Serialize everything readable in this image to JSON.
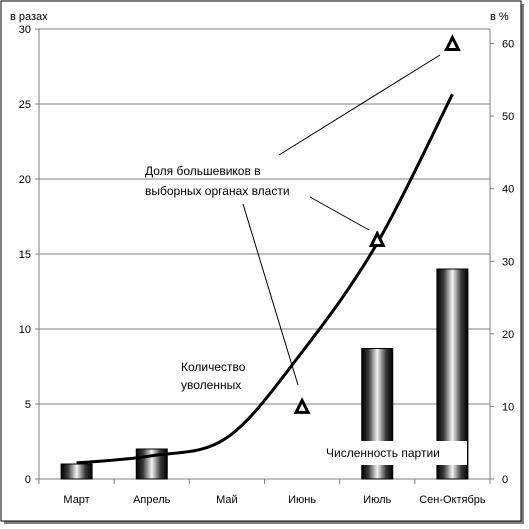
{
  "chart_data": {
    "type": "bar",
    "categories": [
      "Март",
      "Апрель",
      "Май",
      "Июнь",
      "Июль",
      "Сен-Октябрь"
    ],
    "left_axis": {
      "label": "в разах",
      "ylim": [
        0,
        30
      ],
      "ticks": [
        0,
        5,
        10,
        15,
        20,
        25,
        30
      ]
    },
    "right_axis": {
      "label": "в %",
      "ylim": [
        0,
        62
      ],
      "ticks": [
        0,
        10,
        20,
        30,
        40,
        50,
        60
      ]
    },
    "grid": true,
    "series": [
      {
        "name": "Численность партии",
        "type": "bar",
        "axis": "left",
        "values": [
          1,
          2,
          null,
          null,
          8.7,
          14
        ]
      },
      {
        "name": "Количество уволенных",
        "type": "line",
        "axis": "right",
        "values": [
          2.2,
          3.2,
          5.7,
          17.5,
          32.5,
          53
        ]
      },
      {
        "name": "Доля большевиков в выборных органах власти",
        "type": "scatter",
        "marker": "triangle",
        "axis": "right",
        "values": [
          null,
          null,
          null,
          10,
          33,
          60
        ]
      }
    ],
    "annotations": [
      {
        "lines": [
          "Доля большевиков в",
          "выборных органах власти"
        ]
      },
      {
        "lines": [
          "Количество",
          "уволенных"
        ]
      },
      {
        "lines": [
          "Численность партии"
        ]
      }
    ],
    "colors": {
      "line": "#000000",
      "grid": "#808080",
      "axis": "#808080",
      "bar_dark": "#000000",
      "bar_light": "#ffffff"
    }
  }
}
